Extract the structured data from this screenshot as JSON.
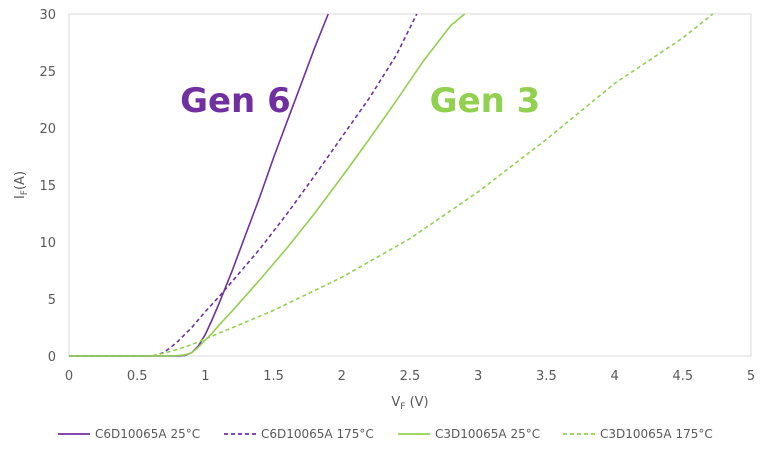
{
  "chart_data": {
    "type": "line",
    "title": "",
    "xlabel": {
      "main": "V",
      "sub": "F",
      "unit": " (V)"
    },
    "ylabel": {
      "main": "I",
      "sub": "F",
      "unit": "(A)"
    },
    "xlim": [
      0,
      5
    ],
    "ylim": [
      0,
      30
    ],
    "xticks": [
      "0",
      "0.5",
      "1",
      "1.5",
      "2",
      "2.5",
      "3",
      "3.5",
      "4",
      "4.5",
      "5"
    ],
    "yticks": [
      "0",
      "5",
      "10",
      "15",
      "20",
      "25",
      "30"
    ],
    "grid": false,
    "legend_position": "bottom",
    "annotations": [
      {
        "text": "Gen 6",
        "color": "#7030a0",
        "x": 1.22,
        "y": 21.4
      },
      {
        "text": "Gen 3",
        "color": "#92d050",
        "x": 3.05,
        "y": 21.4
      }
    ],
    "series": [
      {
        "name": "C6D10065A 25°C",
        "color": "#7030a0",
        "dash": "solid",
        "x": [
          0,
          0.7,
          0.8,
          0.85,
          0.9,
          0.95,
          1.0,
          1.05,
          1.1,
          1.2,
          1.3,
          1.4,
          1.5,
          1.6,
          1.7,
          1.8,
          1.9
        ],
        "y": [
          0,
          0,
          0,
          0.05,
          0.3,
          0.9,
          1.9,
          3.2,
          4.6,
          7.6,
          10.8,
          14.0,
          17.4,
          20.6,
          23.8,
          27.0,
          30.0
        ]
      },
      {
        "name": "C6D10065A 175°C",
        "color": "#7030a0",
        "dash": "dashed",
        "x": [
          0,
          0.6,
          0.65,
          0.7,
          0.75,
          0.8,
          0.85,
          0.9,
          1.0,
          1.1,
          1.2,
          1.4,
          1.6,
          1.8,
          2.0,
          2.2,
          2.4,
          2.55
        ],
        "y": [
          0,
          0,
          0.1,
          0.35,
          0.8,
          1.3,
          1.9,
          2.5,
          3.9,
          5.2,
          6.6,
          9.4,
          12.5,
          15.8,
          19.2,
          22.6,
          26.4,
          30.0
        ]
      },
      {
        "name": "C3D10065A 25°C",
        "color": "#92d050",
        "dash": "solid",
        "x": [
          0,
          0.75,
          0.85,
          0.9,
          0.95,
          1.0,
          1.05,
          1.1,
          1.2,
          1.4,
          1.6,
          1.8,
          2.0,
          2.2,
          2.4,
          2.6,
          2.8,
          2.9
        ],
        "y": [
          0,
          0,
          0.1,
          0.3,
          0.8,
          1.4,
          2.0,
          2.7,
          4.0,
          6.7,
          9.5,
          12.5,
          15.7,
          19.0,
          22.4,
          25.9,
          29.0,
          30.0
        ]
      },
      {
        "name": "C3D10065A 175°C",
        "color": "#92d050",
        "dash": "dashed",
        "x": [
          0,
          0.6,
          0.7,
          0.8,
          0.9,
          1.0,
          1.2,
          1.5,
          2.0,
          2.5,
          3.0,
          3.5,
          4.0,
          4.5,
          4.72
        ],
        "y": [
          0,
          0,
          0.25,
          0.6,
          1.0,
          1.5,
          2.5,
          4.0,
          6.9,
          10.3,
          14.4,
          19.0,
          23.9,
          27.9,
          30.0
        ]
      }
    ]
  }
}
